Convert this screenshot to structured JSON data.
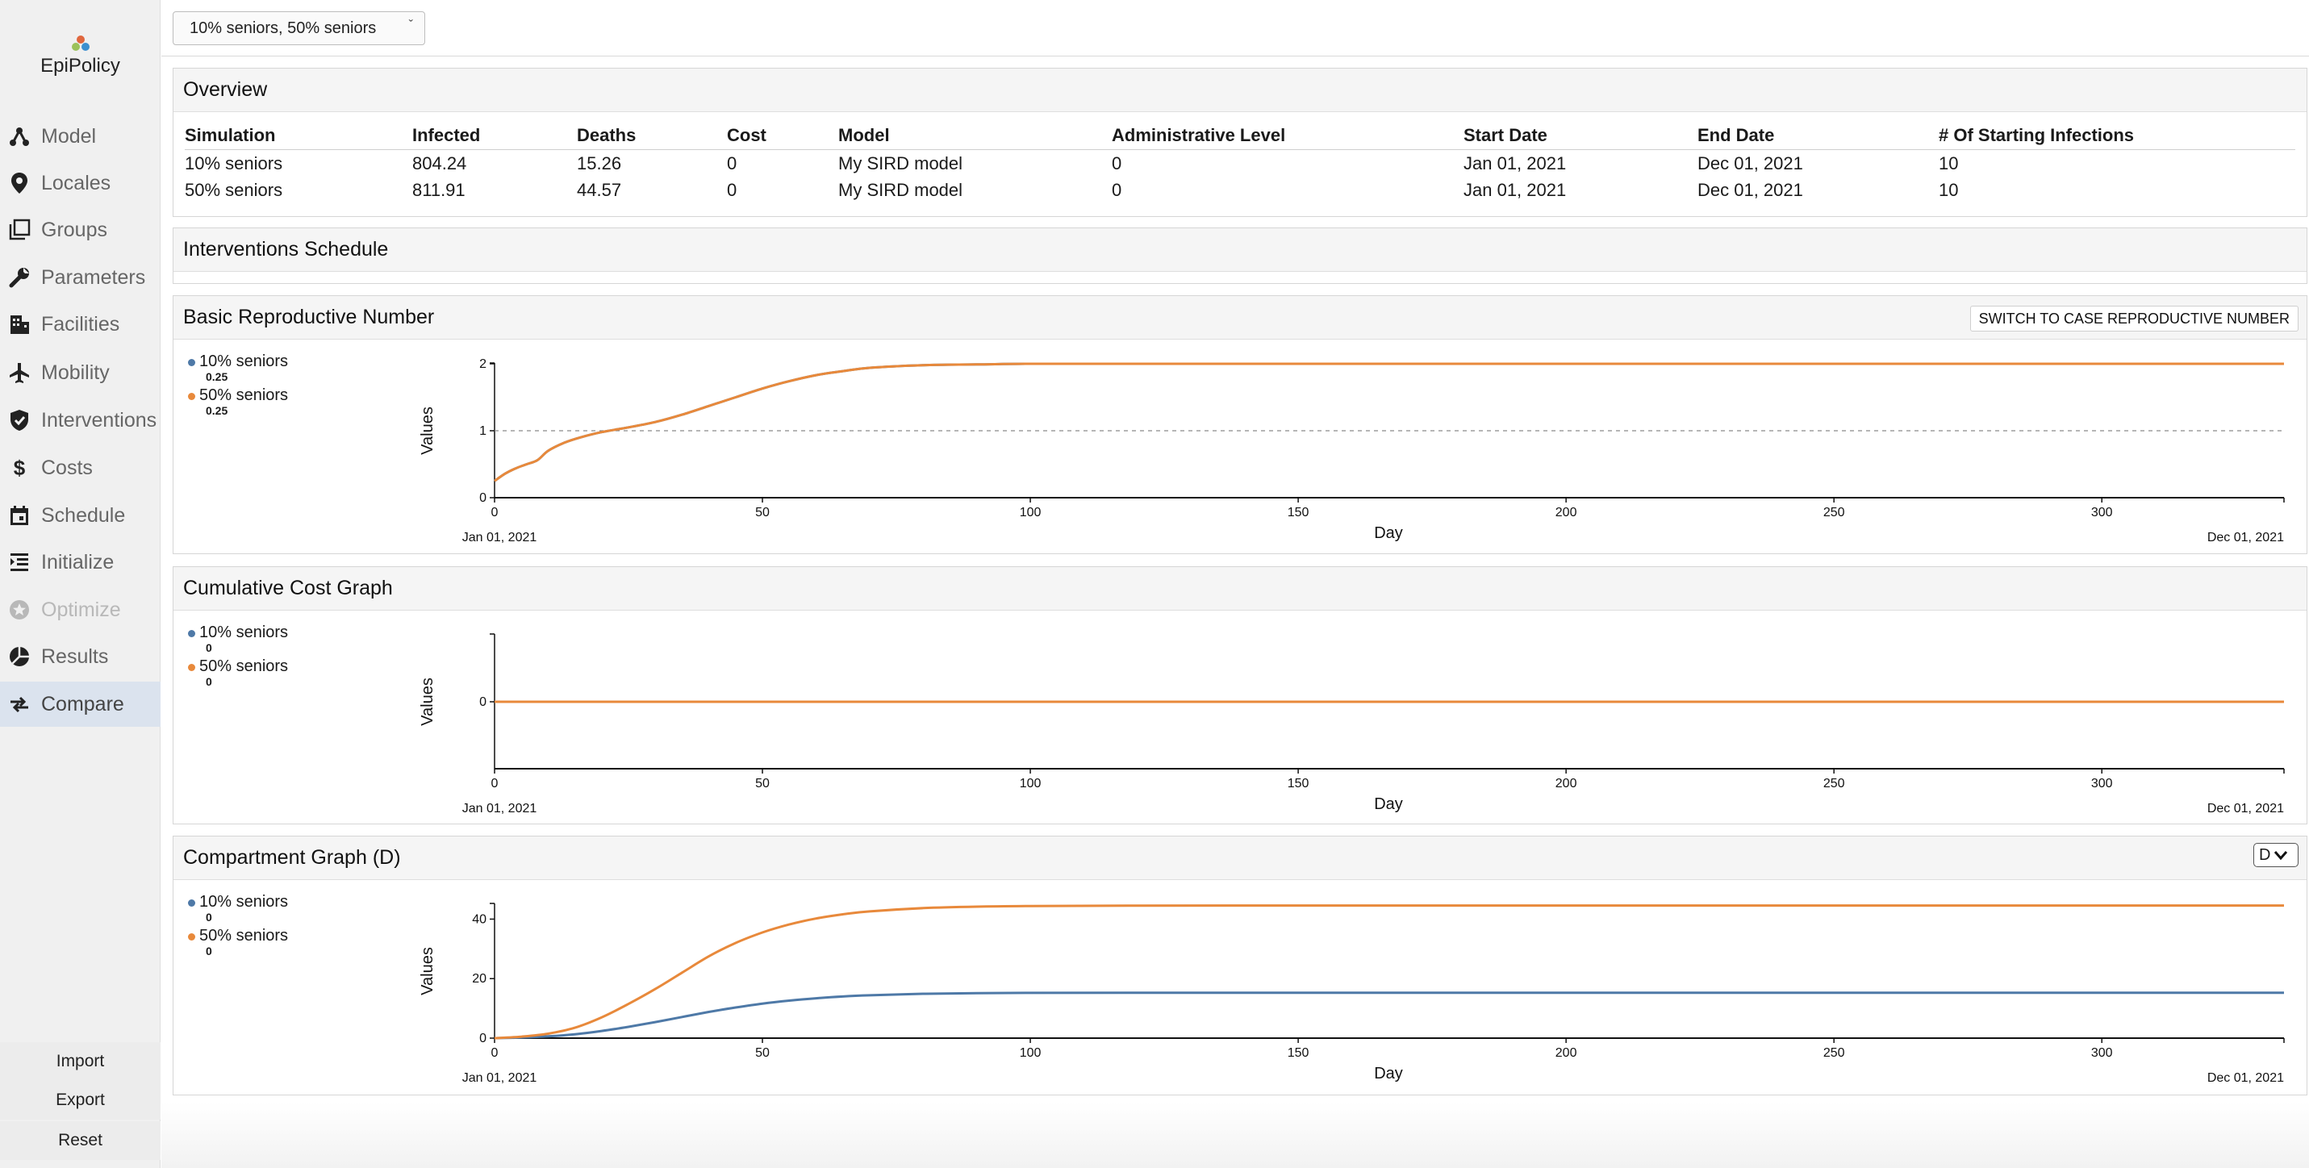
{
  "app": {
    "logo_text": "EpiPolicy",
    "logo_colors": [
      "#e0673e",
      "#9bc25a",
      "#3c8fcf"
    ]
  },
  "sidebar": {
    "items": [
      {
        "label": "Model",
        "icon": "model-icon",
        "state": "normal"
      },
      {
        "label": "Locales",
        "icon": "location-pin-icon",
        "state": "normal"
      },
      {
        "label": "Groups",
        "icon": "groups-icon",
        "state": "normal"
      },
      {
        "label": "Parameters",
        "icon": "wrench-icon",
        "state": "normal"
      },
      {
        "label": "Facilities",
        "icon": "building-icon",
        "state": "normal"
      },
      {
        "label": "Mobility",
        "icon": "airplane-icon",
        "state": "normal"
      },
      {
        "label": "Interventions",
        "icon": "shield-icon",
        "state": "normal"
      },
      {
        "label": "Costs",
        "icon": "dollar-icon",
        "state": "normal"
      },
      {
        "label": "Schedule",
        "icon": "calendar-icon",
        "state": "normal"
      },
      {
        "label": "Initialize",
        "icon": "list-indent-icon",
        "state": "normal"
      },
      {
        "label": "Optimize",
        "icon": "star-badge-icon",
        "state": "disabled"
      },
      {
        "label": "Results",
        "icon": "pie-chart-icon",
        "state": "normal"
      },
      {
        "label": "Compare",
        "icon": "compare-arrows-icon",
        "state": "active"
      }
    ],
    "actions": {
      "import": "Import",
      "export": "Export",
      "reset": "Reset"
    }
  },
  "topbar": {
    "selected_simulations": "10% seniors, 50% seniors"
  },
  "colors": {
    "series_1": "#4e79a7",
    "series_2": "#e8893b"
  },
  "overview": {
    "title": "Overview",
    "columns": [
      "Simulation",
      "Infected",
      "Deaths",
      "Cost",
      "Model",
      "Administrative Level",
      "Start Date",
      "End Date",
      "# Of Starting Infections"
    ],
    "rows": [
      [
        "10% seniors",
        "804.24",
        "15.26",
        "0",
        "My SIRD model",
        "0",
        "Jan 01, 2021",
        "Dec 01, 2021",
        "10"
      ],
      [
        "50% seniors",
        "811.91",
        "44.57",
        "0",
        "My SIRD model",
        "0",
        "Jan 01, 2021",
        "Dec 01, 2021",
        "10"
      ]
    ]
  },
  "interventions_schedule": {
    "title": "Interventions Schedule"
  },
  "charts": {
    "r0": {
      "title": "Basic Reproductive Number",
      "switch_label": "SWITCH TO CASE REPRODUCTIVE NUMBER",
      "legend": [
        {
          "name": "10% seniors",
          "value": "0.25"
        },
        {
          "name": "50% seniors",
          "value": "0.25"
        }
      ],
      "ylabel": "Values",
      "xlabel": "Day",
      "x_start_label": "Jan 01, 2021",
      "x_end_label": "Dec 01, 2021"
    },
    "cost": {
      "title": "Cumulative Cost Graph",
      "legend": [
        {
          "name": "10% seniors",
          "value": "0"
        },
        {
          "name": "50% seniors",
          "value": "0"
        }
      ],
      "ylabel": "Values",
      "xlabel": "Day",
      "x_start_label": "Jan 01, 2021",
      "x_end_label": "Dec 01, 2021"
    },
    "compartment": {
      "title": "Compartment Graph (D)",
      "select_value": "D",
      "legend": [
        {
          "name": "10% seniors",
          "value": "0"
        },
        {
          "name": "50% seniors",
          "value": "0"
        }
      ],
      "ylabel": "Values",
      "xlabel": "Day",
      "x_start_label": "Jan 01, 2021",
      "x_end_label": "Dec 01, 2021"
    }
  },
  "chart_data": [
    {
      "type": "line",
      "title": "Basic Reproductive Number",
      "xlabel": "Day",
      "ylabel": "Values",
      "xlim": [
        0,
        334
      ],
      "ylim": [
        0,
        2
      ],
      "x_ticks": [
        0,
        50,
        100,
        150,
        200,
        250,
        300
      ],
      "y_ticks": [
        0,
        1,
        2
      ],
      "reference_line": {
        "y": 1,
        "style": "dashed"
      },
      "series": [
        {
          "name": "10% seniors",
          "color": "#4e79a7",
          "x": [
            0,
            2,
            4,
            6,
            8,
            10,
            13,
            16,
            20,
            25,
            30,
            35,
            40,
            45,
            50,
            55,
            60,
            65,
            70,
            80,
            90,
            100,
            120,
            150,
            200,
            250,
            300,
            334
          ],
          "y": [
            0.25,
            0.36,
            0.44,
            0.5,
            0.56,
            0.7,
            0.82,
            0.9,
            0.98,
            1.05,
            1.13,
            1.24,
            1.37,
            1.5,
            1.63,
            1.74,
            1.83,
            1.89,
            1.94,
            1.98,
            1.99,
            2.0,
            2.0,
            2.0,
            2.0,
            2.0,
            2.0,
            2.0
          ]
        },
        {
          "name": "50% seniors",
          "color": "#e8893b",
          "x": [
            0,
            2,
            4,
            6,
            8,
            10,
            13,
            16,
            20,
            25,
            30,
            35,
            40,
            45,
            50,
            55,
            60,
            65,
            70,
            80,
            90,
            100,
            120,
            150,
            200,
            250,
            300,
            334
          ],
          "y": [
            0.25,
            0.36,
            0.44,
            0.5,
            0.56,
            0.7,
            0.82,
            0.9,
            0.98,
            1.05,
            1.13,
            1.24,
            1.37,
            1.5,
            1.63,
            1.74,
            1.83,
            1.89,
            1.94,
            1.98,
            1.99,
            2.0,
            2.0,
            2.0,
            2.0,
            2.0,
            2.0,
            2.0
          ]
        }
      ]
    },
    {
      "type": "line",
      "title": "Cumulative Cost Graph",
      "xlabel": "Day",
      "ylabel": "Values",
      "xlim": [
        0,
        334
      ],
      "ylim": [
        -1,
        1
      ],
      "x_ticks": [
        0,
        50,
        100,
        150,
        200,
        250,
        300
      ],
      "y_ticks": [
        0
      ],
      "series": [
        {
          "name": "10% seniors",
          "color": "#4e79a7",
          "x": [
            0,
            334
          ],
          "y": [
            0,
            0
          ]
        },
        {
          "name": "50% seniors",
          "color": "#e8893b",
          "x": [
            0,
            334
          ],
          "y": [
            0,
            0
          ]
        }
      ]
    },
    {
      "type": "line",
      "title": "Compartment Graph (D)",
      "xlabel": "Day",
      "ylabel": "Values",
      "xlim": [
        0,
        334
      ],
      "ylim": [
        0,
        45
      ],
      "x_ticks": [
        0,
        50,
        100,
        150,
        200,
        250,
        300
      ],
      "y_ticks": [
        0,
        20,
        40
      ],
      "series": [
        {
          "name": "10% seniors",
          "color": "#4e79a7",
          "x": [
            0,
            5,
            10,
            15,
            20,
            25,
            30,
            35,
            40,
            45,
            50,
            55,
            60,
            65,
            70,
            80,
            90,
            100,
            120,
            150,
            200,
            250,
            300,
            334
          ],
          "y": [
            0,
            0.2,
            0.6,
            1.3,
            2.4,
            3.8,
            5.4,
            7.1,
            8.8,
            10.3,
            11.6,
            12.6,
            13.4,
            14.0,
            14.4,
            14.9,
            15.1,
            15.2,
            15.25,
            15.26,
            15.26,
            15.26,
            15.26,
            15.26
          ]
        },
        {
          "name": "50% seniors",
          "color": "#e8893b",
          "x": [
            0,
            5,
            10,
            15,
            20,
            25,
            30,
            35,
            40,
            45,
            50,
            55,
            60,
            65,
            70,
            80,
            90,
            100,
            120,
            150,
            200,
            250,
            300,
            334
          ],
          "y": [
            0,
            0.5,
            1.5,
            3.5,
            7.0,
            11.5,
            16.5,
            22.0,
            27.5,
            32.0,
            35.5,
            38.2,
            40.2,
            41.6,
            42.6,
            43.7,
            44.2,
            44.4,
            44.55,
            44.57,
            44.57,
            44.57,
            44.57,
            44.57
          ]
        }
      ]
    }
  ]
}
